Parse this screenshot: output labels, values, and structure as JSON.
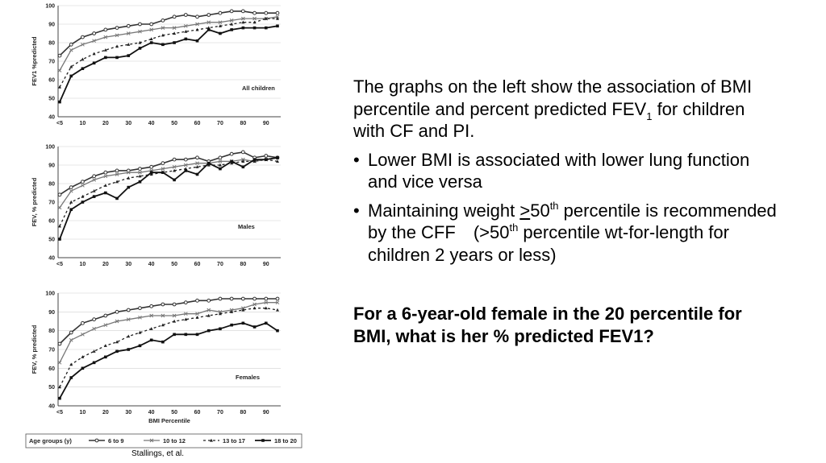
{
  "slide": {
    "intro": {
      "p1": "The graphs on the left show the association of BMI percentile and percent predicted FEV",
      "p1_sub": "1",
      "p2": " for children with CF and PI."
    },
    "bullet1": "Lower BMI is associated with lower lung function and vice versa",
    "bullet2": {
      "a": "Maintaining weight ",
      "b": ">",
      "c": "50",
      "d": "th",
      "e": " percentile is recommended by the CFF",
      "f": "(>50",
      "g": "th",
      "h": " percentile wt-for-length for children 2 years or less)"
    },
    "question": "For a 6-year-old female in the 20 percentile for BMI, what is her % predicted FEV1?",
    "credit": "Stallings, et al."
  },
  "legend": {
    "title": "Age groups (y)",
    "items": [
      "6 to 9",
      "10 to 12",
      "13 to 17",
      "18 to 20"
    ]
  },
  "colors": {
    "6 to 9": "#333333",
    "10 to 12": "#777777",
    "13 to 17": "#222222",
    "18 to 20": "#111111"
  },
  "chart_data": [
    {
      "type": "line",
      "title": "All children",
      "ylabel": "FEV1 %predicted",
      "xlabel": "",
      "x": [
        "<5",
        "5",
        "10",
        "15",
        "20",
        "25",
        "30",
        "35",
        "40",
        "45",
        "50",
        "55",
        "60",
        "65",
        "70",
        "75",
        "80",
        "85",
        "90",
        "95"
      ],
      "xticks": [
        "<5",
        "10",
        "20",
        "30",
        "40",
        "50",
        "60",
        "70",
        "80",
        "90"
      ],
      "ylim": [
        40,
        100
      ],
      "yticks": [
        40,
        50,
        60,
        70,
        80,
        90,
        100
      ],
      "series": [
        {
          "name": "6 to 9",
          "values": [
            73,
            79,
            83,
            85,
            87,
            88,
            89,
            90,
            90,
            92,
            94,
            95,
            94,
            95,
            96,
            97,
            97,
            96,
            96,
            96
          ]
        },
        {
          "name": "10 to 12",
          "values": [
            65,
            76,
            79,
            81,
            83,
            84,
            85,
            86,
            87,
            88,
            88,
            89,
            90,
            91,
            91,
            92,
            93,
            93,
            93,
            94
          ]
        },
        {
          "name": "13 to 17",
          "values": [
            56,
            67,
            71,
            74,
            76,
            78,
            79,
            80,
            82,
            84,
            85,
            86,
            87,
            88,
            89,
            90,
            91,
            91,
            93,
            93
          ]
        },
        {
          "name": "18 to 20",
          "values": [
            48,
            62,
            66,
            69,
            72,
            72,
            73,
            77,
            80,
            79,
            80,
            82,
            81,
            87,
            85,
            87,
            88,
            88,
            88,
            89
          ]
        }
      ]
    },
    {
      "type": "line",
      "title": "Males",
      "ylabel": "FEV, % predicted",
      "xlabel": "",
      "x": [
        "<5",
        "5",
        "10",
        "15",
        "20",
        "25",
        "30",
        "35",
        "40",
        "45",
        "50",
        "55",
        "60",
        "65",
        "70",
        "75",
        "80",
        "85",
        "90",
        "95"
      ],
      "xticks": [
        "<5",
        "10",
        "20",
        "30",
        "40",
        "50",
        "60",
        "70",
        "80",
        "90"
      ],
      "ylim": [
        40,
        100
      ],
      "yticks": [
        40,
        50,
        60,
        70,
        80,
        90,
        100
      ],
      "series": [
        {
          "name": "6 to 9",
          "values": [
            74,
            78,
            81,
            84,
            86,
            87,
            87,
            88,
            89,
            91,
            93,
            93,
            94,
            92,
            94,
            96,
            97,
            94,
            95,
            94
          ]
        },
        {
          "name": "10 to 12",
          "values": [
            67,
            76,
            79,
            82,
            84,
            85,
            86,
            86,
            87,
            88,
            89,
            90,
            91,
            91,
            92,
            92,
            93,
            92,
            93,
            94
          ]
        },
        {
          "name": "13 to 17",
          "values": [
            57,
            70,
            73,
            76,
            79,
            81,
            83,
            84,
            85,
            86,
            87,
            88,
            89,
            90,
            90,
            91,
            92,
            92,
            93,
            92
          ]
        },
        {
          "name": "18 to 20",
          "values": [
            50,
            66,
            70,
            73,
            75,
            72,
            78,
            81,
            86,
            86,
            82,
            87,
            85,
            91,
            88,
            92,
            89,
            93,
            93,
            94
          ]
        }
      ]
    },
    {
      "type": "line",
      "title": "Females",
      "ylabel": "FEV, % predicted",
      "xlabel": "BMI Percentile",
      "x": [
        "<5",
        "5",
        "10",
        "15",
        "20",
        "25",
        "30",
        "35",
        "40",
        "45",
        "50",
        "55",
        "60",
        "65",
        "70",
        "75",
        "80",
        "85",
        "90",
        "95"
      ],
      "xticks": [
        "<5",
        "10",
        "20",
        "30",
        "40",
        "50",
        "60",
        "70",
        "80",
        "90"
      ],
      "ylim": [
        40,
        100
      ],
      "yticks": [
        40,
        50,
        60,
        70,
        80,
        90,
        100
      ],
      "series": [
        {
          "name": "6 to 9",
          "values": [
            73,
            79,
            84,
            86,
            88,
            90,
            91,
            92,
            93,
            94,
            94,
            95,
            96,
            96,
            97,
            97,
            97,
            97,
            97,
            97
          ]
        },
        {
          "name": "10 to 12",
          "values": [
            63,
            75,
            78,
            81,
            83,
            85,
            86,
            87,
            88,
            88,
            88,
            89,
            89,
            91,
            90,
            91,
            92,
            94,
            95,
            95
          ]
        },
        {
          "name": "13 to 17",
          "values": [
            50,
            62,
            66,
            69,
            72,
            74,
            77,
            79,
            81,
            83,
            85,
            86,
            87,
            88,
            89,
            90,
            91,
            92,
            92,
            91
          ]
        },
        {
          "name": "18 to 20",
          "values": [
            44,
            55,
            60,
            63,
            66,
            69,
            70,
            72,
            75,
            74,
            78,
            78,
            78,
            80,
            81,
            83,
            84,
            82,
            84,
            80
          ]
        }
      ]
    }
  ]
}
